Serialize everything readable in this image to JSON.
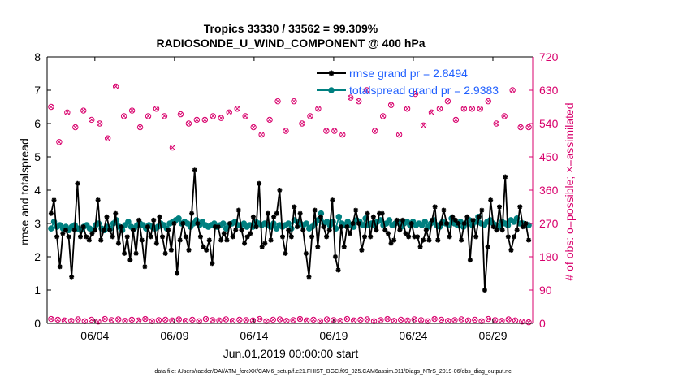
{
  "chart_data": {
    "type": "line",
    "title_line1": "Tropics 33330 / 33562 = 99.309%",
    "title_line2": "RADIOSONDE_U_WIND_COMPONENT @ 400 hPa",
    "xlabel": "Jun.01,2019 00:00:00 start",
    "ylabel_left": "rmse and totalspread",
    "ylabel_right": "# of obs: o=possible; ×=assimilated",
    "footer": "data file: /Users/raeder/DAI/ATM_forcXX/CAM6_setup/f.e21.FHIST_BGC.f09_025.CAM6assim.011/Diags_NTrS_2019-06/obs_diag_output.nc",
    "x_range_days": [
      0,
      30.5
    ],
    "x_ticks": [
      {
        "day": 3,
        "label": "06/04"
      },
      {
        "day": 8,
        "label": "06/09"
      },
      {
        "day": 13,
        "label": "06/14"
      },
      {
        "day": 18,
        "label": "06/19"
      },
      {
        "day": 23,
        "label": "06/24"
      },
      {
        "day": 28,
        "label": "06/29"
      }
    ],
    "ylim_left": [
      0,
      8
    ],
    "yticks_left": [
      "0",
      "1",
      "2",
      "3",
      "4",
      "5",
      "6",
      "7",
      "8"
    ],
    "ylim_right": [
      0,
      720
    ],
    "yticks_right": [
      "0",
      "90",
      "180",
      "270",
      "360",
      "450",
      "540",
      "630",
      "720"
    ],
    "colors": {
      "rmse": "#000000",
      "totalspread": "#008080",
      "obs": "#d8006c",
      "legend_text": "#1f5fff",
      "axis": "#000000"
    },
    "legend": [
      {
        "series": "rmse",
        "label": "rmse grand pr = 2.8494"
      },
      {
        "series": "totalspread",
        "label": "totalspread grand pr = 2.9383"
      }
    ],
    "series": [
      {
        "name": "rmse",
        "axis": "left",
        "values": [
          3.3,
          3.7,
          2.6,
          1.7,
          2.7,
          2.8,
          2.6,
          1.4,
          2.8,
          4.2,
          2.6,
          2.9,
          2.6,
          2.5,
          2.7,
          2.8,
          3.7,
          2.5,
          2.8,
          3.2,
          2.8,
          2.6,
          3.3,
          2.4,
          2.9,
          2.1,
          2.6,
          1.9,
          2.8,
          2.1,
          3.1,
          2.5,
          1.7,
          2.9,
          2.6,
          3.1,
          2.4,
          3.2,
          2.6,
          2.1,
          2.8,
          2.2,
          3.0,
          1.5,
          2.5,
          3.0,
          2.6,
          2.2,
          3.3,
          4.6,
          3.0,
          2.6,
          2.3,
          2.2,
          2.5,
          1.8,
          2.9,
          2.9,
          2.5,
          2.7,
          2.5,
          3.0,
          2.6,
          2.8,
          3.4,
          2.8,
          2.4,
          2.6,
          2.7,
          3.2,
          2.9,
          4.2,
          2.3,
          2.4,
          3.3,
          2.5,
          3.2,
          3.3,
          4.0,
          2.6,
          2.1,
          2.8,
          2.6,
          3.5,
          2.9,
          3.3,
          2.8,
          2.1,
          1.4,
          2.6,
          3.4,
          2.3,
          3.2,
          2.9,
          2.6,
          2.8,
          3.7,
          2.0,
          1.6,
          2.9,
          2.3,
          2.9,
          2.7,
          3.0,
          3.4,
          3.0,
          2.2,
          2.6,
          3.3,
          2.6,
          3.2,
          2.8,
          3.3,
          3.3,
          2.8,
          2.7,
          2.4,
          2.5,
          3.1,
          2.8,
          3.1,
          2.7,
          2.6,
          3.0,
          2.6,
          2.6,
          2.3,
          2.5,
          2.8,
          2.5,
          3.1,
          3.5,
          2.5,
          3.0,
          3.4,
          3.0,
          2.6,
          3.2,
          3.1,
          3.0,
          2.5,
          3.0,
          3.2,
          1.9,
          3.1,
          2.6,
          3.2,
          3.4,
          1.0,
          2.3,
          3.7,
          2.9,
          2.8,
          3.5,
          2.8,
          4.4,
          2.6,
          2.2,
          2.6,
          2.8,
          3.5,
          2.9,
          3.0,
          2.5
        ]
      },
      {
        "name": "totalspread",
        "axis": "left",
        "values": [
          2.85,
          3.05,
          2.9,
          2.95,
          2.85,
          2.9,
          2.8,
          2.9,
          2.95,
          2.85,
          2.8,
          2.9,
          2.95,
          2.85,
          2.8,
          2.95,
          3.0,
          2.85,
          2.8,
          2.9,
          2.85,
          3.0,
          3.1,
          2.9,
          2.8,
          2.95,
          3.05,
          2.9,
          2.85,
          2.95,
          3.0,
          2.95,
          2.85,
          2.95,
          2.9,
          2.85,
          2.9,
          3.0,
          2.95,
          2.85,
          3.0,
          3.05,
          3.1,
          3.15,
          3.0,
          3.05,
          3.0,
          2.9,
          3.0,
          3.1,
          2.95,
          3.05,
          2.95,
          2.9,
          2.95,
          3.0,
          2.9,
          2.95,
          3.0,
          2.85,
          2.95,
          3.0,
          3.05,
          2.95,
          2.95,
          3.0,
          2.9,
          2.95,
          2.9,
          3.05,
          3.0,
          2.95,
          3.0,
          2.95,
          2.9,
          3.0,
          2.85,
          2.95,
          2.9,
          2.95,
          3.0,
          2.85,
          3.1,
          3.05,
          3.0,
          2.95,
          3.0,
          2.85,
          2.9,
          3.0,
          3.1,
          3.3,
          3.0,
          3.05,
          2.95,
          3.05,
          2.85,
          3.2,
          3.0,
          2.95,
          3.05,
          2.95,
          2.9,
          3.1,
          3.05,
          2.95,
          3.15,
          2.95,
          3.0,
          2.95,
          3.05,
          3.1,
          2.95,
          3.0,
          3.1,
          2.95,
          3.0,
          3.05,
          2.9,
          3.0,
          3.05,
          2.95,
          3.05,
          2.95,
          3.0,
          2.95,
          3.05,
          2.9,
          3.0,
          3.1,
          2.95,
          2.9,
          3.05,
          3.0,
          2.95,
          3.15,
          3.0,
          2.95,
          3.05,
          2.9,
          3.0,
          3.1,
          2.95,
          3.05,
          3.2,
          3.0,
          2.95,
          3.05,
          3.1,
          3.0,
          2.95,
          2.9,
          3.05,
          3.0,
          2.95,
          3.1,
          3.05,
          3.15,
          3.0,
          3.0,
          2.95,
          2.95
        ]
      },
      {
        "name": "obs_possible_upper",
        "axis": "right",
        "values": [
          585,
          490,
          570,
          530,
          575,
          550,
          540,
          500,
          640,
          560,
          575,
          530,
          560,
          580,
          560,
          475,
          565,
          540,
          550,
          550,
          560,
          555,
          570,
          580,
          560,
          530,
          510,
          550,
          600,
          520,
          600,
          540,
          560,
          580,
          520,
          520,
          510,
          610,
          600,
          630,
          520,
          560,
          590,
          510,
          580,
          620,
          535,
          570,
          580,
          600,
          550,
          580,
          580,
          580,
          600,
          540,
          560,
          630,
          530,
          530
        ]
      },
      {
        "name": "obs_possible_lower",
        "axis": "right",
        "values": [
          12,
          10,
          8,
          7,
          11,
          6,
          10,
          5,
          12,
          9,
          11,
          7,
          10,
          8,
          12,
          6,
          9,
          10,
          8,
          11,
          7,
          10,
          6,
          12,
          9,
          8,
          11,
          7,
          10,
          9,
          8,
          12,
          6,
          10,
          11,
          7,
          9,
          12,
          8,
          10,
          6,
          11,
          9,
          7,
          12,
          8,
          10,
          11,
          6,
          9,
          12,
          7,
          10,
          8,
          11,
          9,
          6,
          12,
          10,
          7,
          9,
          11,
          8,
          10,
          6,
          12,
          9,
          7,
          11,
          8,
          5,
          3
        ]
      }
    ]
  }
}
